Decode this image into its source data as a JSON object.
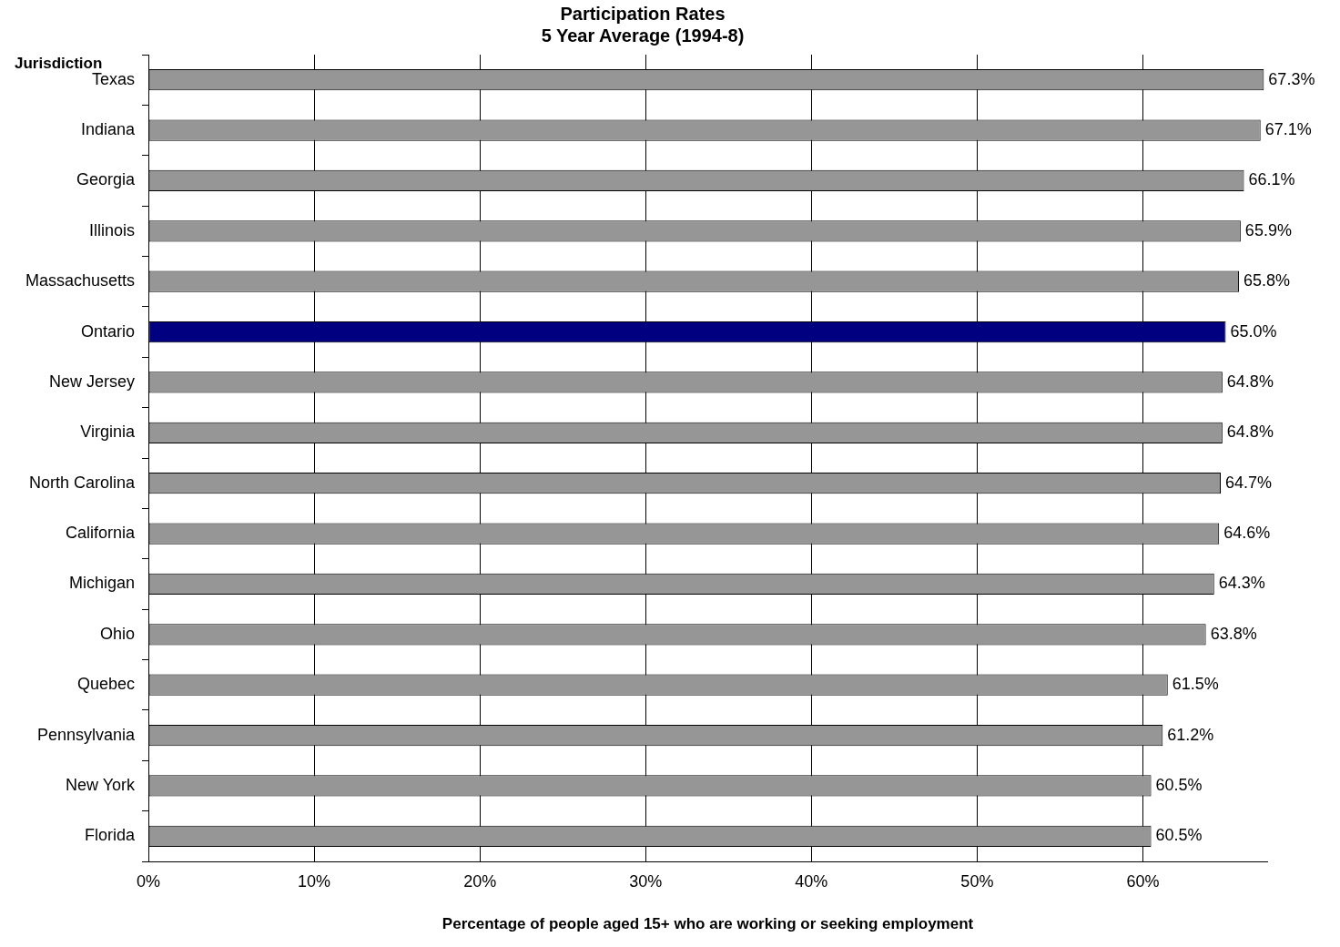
{
  "chart_data": {
    "type": "bar",
    "orientation": "horizontal",
    "title": [
      "Participation Rates",
      "5 Year Average (1994-8)"
    ],
    "ylabel": "Jurisdiction",
    "xlabel": "Percentage of people aged 15+ who are working or seeking employment",
    "categories": [
      "Texas",
      "Indiana",
      "Georgia",
      "Illinois",
      "Massachusetts",
      "Ontario",
      "New Jersey",
      "Virginia",
      "North Carolina",
      "California",
      "Michigan",
      "Ohio",
      "Quebec",
      "Pennsylvania",
      "New York",
      "Florida"
    ],
    "values": [
      67.3,
      67.1,
      66.1,
      65.9,
      65.8,
      65.0,
      64.8,
      64.8,
      64.7,
      64.6,
      64.3,
      63.8,
      61.5,
      61.2,
      60.5,
      60.5
    ],
    "colors": [
      "#969696",
      "#969696",
      "#969696",
      "#969696",
      "#969696",
      "#000080",
      "#969696",
      "#969696",
      "#969696",
      "#969696",
      "#969696",
      "#969696",
      "#969696",
      "#969696",
      "#969696",
      "#969696"
    ],
    "value_labels": [
      "67.3%",
      "67.1%",
      "66.1%",
      "65.9%",
      "65.8%",
      "65.0%",
      "64.8%",
      "64.8%",
      "64.7%",
      "64.6%",
      "64.3%",
      "63.8%",
      "61.5%",
      "61.2%",
      "60.5%",
      "60.5%"
    ],
    "xlim": [
      0,
      67.5
    ],
    "xticks": [
      {
        "value": 0,
        "label": "0%"
      },
      {
        "value": 10,
        "label": "10%"
      },
      {
        "value": 20,
        "label": "20%"
      },
      {
        "value": 30,
        "label": "30%"
      },
      {
        "value": 40,
        "label": "40%"
      },
      {
        "value": 50,
        "label": "50%"
      },
      {
        "value": 60,
        "label": "60%"
      }
    ],
    "grid": "x",
    "legend": false
  }
}
